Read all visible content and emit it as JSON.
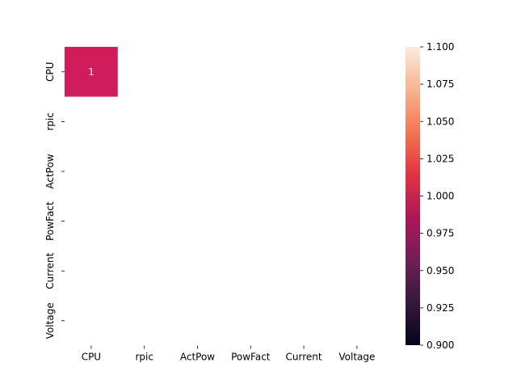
{
  "chart_data": {
    "type": "heatmap",
    "title": "",
    "xlabel": "",
    "ylabel": "",
    "x_categories": [
      "CPU",
      "rpic",
      "ActPow",
      "PowFact",
      "Current",
      "Voltage"
    ],
    "y_categories": [
      "CPU",
      "rpic",
      "ActPow",
      "PowFact",
      "Current",
      "Voltage"
    ],
    "values": [
      [
        1,
        null,
        null,
        null,
        null,
        null
      ],
      [
        null,
        null,
        null,
        null,
        null,
        null
      ],
      [
        null,
        null,
        null,
        null,
        null,
        null
      ],
      [
        null,
        null,
        null,
        null,
        null,
        null
      ],
      [
        null,
        null,
        null,
        null,
        null,
        null
      ],
      [
        null,
        null,
        null,
        null,
        null,
        null
      ]
    ],
    "annotations": [
      {
        "row": 0,
        "col": 0,
        "text": "1"
      }
    ],
    "colormap": "rocket",
    "cell_color": "#d11c5b",
    "annotation_color": "#f0f0f0",
    "colorbar": {
      "range": [
        0.9,
        1.1
      ],
      "ticks": [
        "0.900",
        "0.925",
        "0.950",
        "0.975",
        "1.000",
        "1.025",
        "1.050",
        "1.075",
        "1.100"
      ],
      "stops": [
        "#03051a",
        "#35193e",
        "#701f57",
        "#ad1759",
        "#e13342",
        "#f37651",
        "#f6b48f",
        "#faebdd"
      ]
    },
    "grid": false,
    "legend": "colorbar-right"
  }
}
